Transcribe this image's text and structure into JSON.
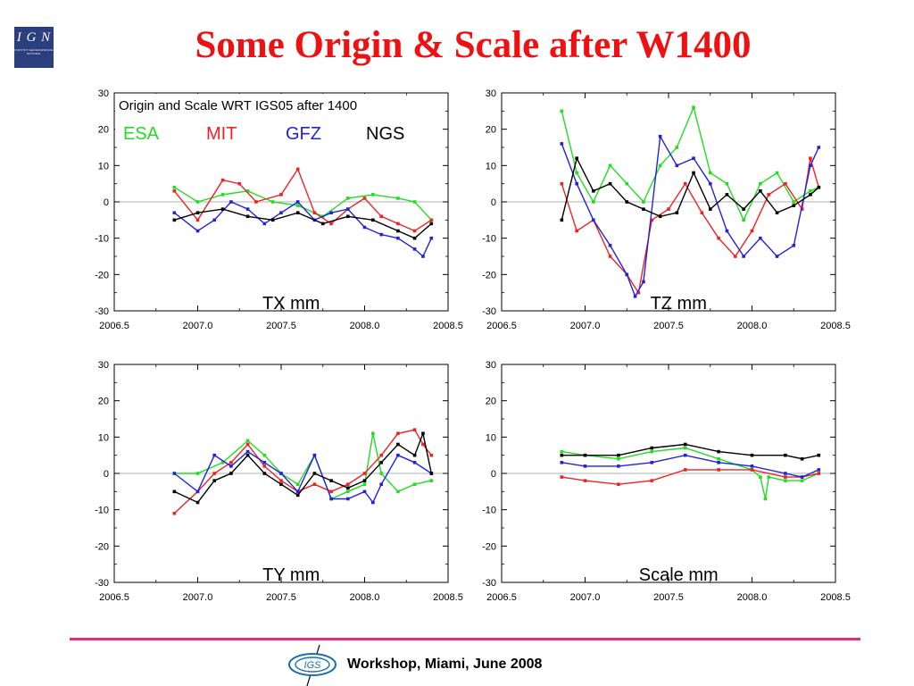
{
  "slide": {
    "title": "Some Origin & Scale after W1400",
    "logo_text": "I G N",
    "logo_subtext": "INSTITUT GEOGRAPHIQUE NATIONAL",
    "footer_logo_text": "IGS",
    "footer_text": "Workshop, Miami, June 2008"
  },
  "colors": {
    "title": "#ee1111",
    "ESA": "#22dd22",
    "MIT": "#ee2222",
    "GFZ": "#2222dd",
    "NGS": "#000000",
    "footer_line": "#e0307a"
  },
  "legend": {
    "title": "Origin and Scale WRT IGS05 after 1400",
    "items": [
      "ESA",
      "MIT",
      "GFZ",
      "NGS"
    ]
  },
  "chart_data": [
    {
      "type": "line",
      "label": "TX mm",
      "xlim": [
        2006.5,
        2008.5
      ],
      "ylim": [
        -30,
        30
      ],
      "x_ticks": [
        "2006.5",
        "2007.0",
        "2007.5",
        "2008.0",
        "2008.5"
      ],
      "y_ticks": [
        "30",
        "20",
        "10",
        "0",
        "-10",
        "-20",
        "-30"
      ],
      "grid": false,
      "zero_line": true,
      "legend": "top-left",
      "series": [
        {
          "name": "ESA",
          "x": [
            2006.86,
            2007.0,
            2007.15,
            2007.3,
            2007.45,
            2007.6,
            2007.75,
            2007.9,
            2008.05,
            2008.2,
            2008.3,
            2008.4
          ],
          "y": [
            4,
            0,
            2,
            3,
            0,
            -1,
            -4,
            1,
            2,
            1,
            0,
            -5
          ]
        },
        {
          "name": "MIT",
          "x": [
            2006.86,
            2007.0,
            2007.15,
            2007.25,
            2007.35,
            2007.5,
            2007.6,
            2007.7,
            2007.8,
            2007.9,
            2008.0,
            2008.1,
            2008.2,
            2008.3,
            2008.4
          ],
          "y": [
            3,
            -5,
            6,
            5,
            0,
            2,
            9,
            -3,
            -6,
            -2,
            1,
            -4,
            -6,
            -8,
            -5
          ]
        },
        {
          "name": "GFZ",
          "x": [
            2006.86,
            2007.0,
            2007.1,
            2007.2,
            2007.3,
            2007.4,
            2007.5,
            2007.6,
            2007.7,
            2007.8,
            2007.9,
            2008.0,
            2008.1,
            2008.2,
            2008.3,
            2008.35,
            2008.4
          ],
          "y": [
            -3,
            -8,
            -5,
            0,
            -2,
            -6,
            -3,
            0,
            -5,
            -3,
            -2,
            -7,
            -9,
            -10,
            -13,
            -15,
            -10
          ]
        },
        {
          "name": "NGS",
          "x": [
            2006.86,
            2007.0,
            2007.15,
            2007.3,
            2007.45,
            2007.6,
            2007.75,
            2007.9,
            2008.05,
            2008.2,
            2008.3,
            2008.4
          ],
          "y": [
            -5,
            -3,
            -2,
            -4,
            -5,
            -3,
            -6,
            -4,
            -5,
            -8,
            -10,
            -6
          ]
        }
      ]
    },
    {
      "type": "line",
      "label": "TZ mm",
      "xlim": [
        2006.5,
        2008.5
      ],
      "ylim": [
        -30,
        30
      ],
      "x_ticks": [
        "2006.5",
        "2007.0",
        "2007.5",
        "2008.0",
        "2008.5"
      ],
      "y_ticks": [
        "30",
        "20",
        "10",
        "0",
        "-10",
        "-20",
        "-30"
      ],
      "grid": false,
      "zero_line": true,
      "series": [
        {
          "name": "ESA",
          "x": [
            2006.86,
            2006.95,
            2007.05,
            2007.15,
            2007.25,
            2007.35,
            2007.45,
            2007.55,
            2007.65,
            2007.75,
            2007.85,
            2007.95,
            2008.05,
            2008.15,
            2008.25,
            2008.35,
            2008.4
          ],
          "y": [
            25,
            8,
            0,
            10,
            5,
            0,
            10,
            15,
            26,
            8,
            5,
            -5,
            5,
            8,
            0,
            3,
            4
          ]
        },
        {
          "name": "MIT",
          "x": [
            2006.86,
            2006.95,
            2007.05,
            2007.15,
            2007.25,
            2007.32,
            2007.4,
            2007.5,
            2007.6,
            2007.7,
            2007.8,
            2007.9,
            2008.0,
            2008.1,
            2008.2,
            2008.3,
            2008.35,
            2008.4
          ],
          "y": [
            5,
            -8,
            -5,
            -15,
            -20,
            -25,
            -5,
            -2,
            5,
            -3,
            -10,
            -15,
            -8,
            2,
            5,
            -2,
            12,
            4
          ]
        },
        {
          "name": "GFZ",
          "x": [
            2006.86,
            2006.95,
            2007.05,
            2007.15,
            2007.25,
            2007.3,
            2007.35,
            2007.45,
            2007.55,
            2007.65,
            2007.75,
            2007.85,
            2007.95,
            2008.05,
            2008.15,
            2008.25,
            2008.35,
            2008.4
          ],
          "y": [
            16,
            5,
            -5,
            -12,
            -20,
            -26,
            -22,
            18,
            10,
            12,
            5,
            -8,
            -15,
            -10,
            -15,
            -12,
            10,
            15
          ]
        },
        {
          "name": "NGS",
          "x": [
            2006.86,
            2006.95,
            2007.05,
            2007.15,
            2007.25,
            2007.35,
            2007.45,
            2007.55,
            2007.65,
            2007.75,
            2007.85,
            2007.95,
            2008.05,
            2008.15,
            2008.25,
            2008.35,
            2008.4
          ],
          "y": [
            -5,
            12,
            3,
            5,
            0,
            -2,
            -4,
            -3,
            8,
            -2,
            2,
            -2,
            3,
            -3,
            -1,
            2,
            4
          ]
        }
      ]
    },
    {
      "type": "line",
      "label": "TY mm",
      "xlim": [
        2006.5,
        2008.5
      ],
      "ylim": [
        -30,
        30
      ],
      "x_ticks": [
        "2006.5",
        "2007.0",
        "2007.5",
        "2008.0",
        "2008.5"
      ],
      "y_ticks": [
        "30",
        "20",
        "10",
        "0",
        "-10",
        "-20",
        "-30"
      ],
      "grid": false,
      "zero_line": true,
      "series": [
        {
          "name": "ESA",
          "x": [
            2006.86,
            2007.0,
            2007.15,
            2007.3,
            2007.4,
            2007.5,
            2007.6,
            2007.7,
            2007.8,
            2007.9,
            2008.0,
            2008.05,
            2008.1,
            2008.2,
            2008.3,
            2008.4
          ],
          "y": [
            0,
            0,
            3,
            9,
            5,
            0,
            -3,
            5,
            -7,
            -5,
            -3,
            11,
            0,
            -5,
            -3,
            -2
          ]
        },
        {
          "name": "MIT",
          "x": [
            2006.86,
            2007.0,
            2007.1,
            2007.2,
            2007.3,
            2007.4,
            2007.5,
            2007.6,
            2007.7,
            2007.8,
            2007.9,
            2008.0,
            2008.1,
            2008.2,
            2008.3,
            2008.35,
            2008.4
          ],
          "y": [
            -11,
            -5,
            0,
            3,
            8,
            2,
            -2,
            -5,
            -3,
            -5,
            -3,
            0,
            5,
            11,
            12,
            8,
            5
          ]
        },
        {
          "name": "GFZ",
          "x": [
            2006.86,
            2007.0,
            2007.1,
            2007.2,
            2007.3,
            2007.4,
            2007.5,
            2007.6,
            2007.7,
            2007.8,
            2007.9,
            2008.0,
            2008.05,
            2008.1,
            2008.2,
            2008.3,
            2008.4
          ],
          "y": [
            0,
            -5,
            5,
            2,
            6,
            3,
            0,
            -5,
            5,
            -7,
            -7,
            -5,
            -8,
            -3,
            5,
            3,
            0
          ]
        },
        {
          "name": "NGS",
          "x": [
            2006.86,
            2007.0,
            2007.1,
            2007.2,
            2007.3,
            2007.4,
            2007.5,
            2007.6,
            2007.7,
            2007.8,
            2007.9,
            2008.0,
            2008.1,
            2008.2,
            2008.3,
            2008.35,
            2008.4
          ],
          "y": [
            -5,
            -8,
            -2,
            0,
            5,
            0,
            -3,
            -6,
            0,
            -2,
            -4,
            -2,
            3,
            8,
            5,
            11,
            0
          ]
        }
      ]
    },
    {
      "type": "line",
      "label": "Scale mm",
      "xlim": [
        2006.5,
        2008.5
      ],
      "ylim": [
        -30,
        30
      ],
      "x_ticks": [
        "2006.5",
        "2007.0",
        "2007.5",
        "2008.0",
        "2008.5"
      ],
      "y_ticks": [
        "30",
        "20",
        "10",
        "0",
        "-10",
        "-20",
        "-30"
      ],
      "grid": false,
      "zero_line": true,
      "series": [
        {
          "name": "ESA",
          "x": [
            2006.86,
            2007.0,
            2007.2,
            2007.4,
            2007.6,
            2007.8,
            2008.0,
            2008.05,
            2008.08,
            2008.1,
            2008.2,
            2008.3,
            2008.4
          ],
          "y": [
            6,
            5,
            4,
            6,
            7,
            4,
            1,
            -1,
            -7,
            -1,
            -2,
            -2,
            0
          ]
        },
        {
          "name": "MIT",
          "x": [
            2006.86,
            2007.0,
            2007.2,
            2007.4,
            2007.6,
            2007.8,
            2008.0,
            2008.2,
            2008.3,
            2008.4
          ],
          "y": [
            -1,
            -2,
            -3,
            -2,
            1,
            1,
            1,
            -1,
            -1,
            0
          ]
        },
        {
          "name": "GFZ",
          "x": [
            2006.86,
            2007.0,
            2007.2,
            2007.4,
            2007.6,
            2007.8,
            2008.0,
            2008.2,
            2008.3,
            2008.4
          ],
          "y": [
            3,
            2,
            2,
            3,
            5,
            3,
            2,
            0,
            -1,
            1
          ]
        },
        {
          "name": "NGS",
          "x": [
            2006.86,
            2007.0,
            2007.2,
            2007.4,
            2007.6,
            2007.8,
            2008.0,
            2008.2,
            2008.3,
            2008.4
          ],
          "y": [
            5,
            5,
            5,
            7,
            8,
            6,
            5,
            5,
            4,
            5
          ]
        }
      ]
    }
  ]
}
